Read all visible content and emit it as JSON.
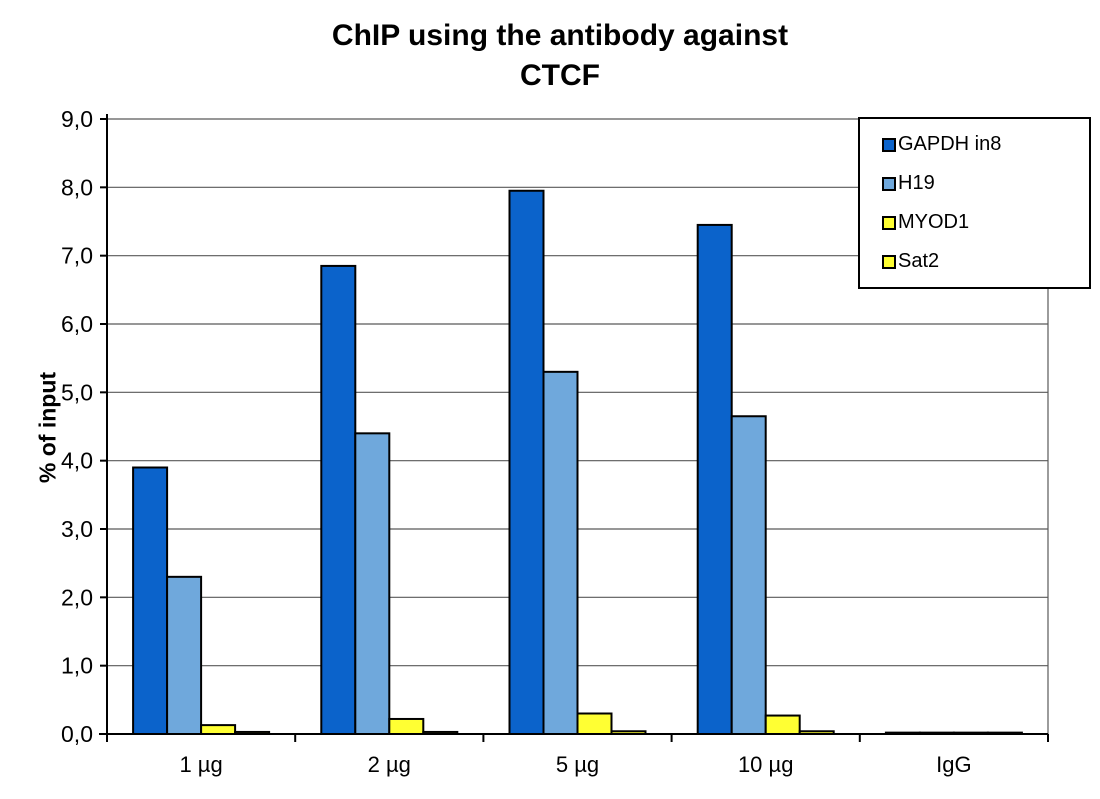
{
  "title": {
    "line1": "ChIP using the antibody against",
    "line2": "CTCF"
  },
  "chart_data": {
    "type": "bar",
    "title": "ChIP using the antibody against CTCF",
    "categories": [
      "1 µg",
      "2 µg",
      "5 µg",
      "10 µg",
      "IgG"
    ],
    "series": [
      {
        "name": "GAPDH in8",
        "color": "#0B63CB",
        "values": [
          3.9,
          6.85,
          7.95,
          7.45,
          0.02
        ]
      },
      {
        "name": "H19",
        "color": "#6FA8DC",
        "values": [
          2.3,
          4.4,
          5.3,
          4.65,
          0.02
        ]
      },
      {
        "name": "MYOD1",
        "color": "#FFFF33",
        "values": [
          0.13,
          0.22,
          0.3,
          0.27,
          0.02
        ]
      },
      {
        "name": "Sat2",
        "color": "#FFFF33",
        "values": [
          0.03,
          0.03,
          0.04,
          0.04,
          0.02
        ]
      }
    ],
    "xlabel": "",
    "ylabel": "% of input",
    "ylim": [
      0,
      9
    ],
    "ytick_step": 1,
    "ytick_labels": [
      "0,0",
      "1,0",
      "2,0",
      "3,0",
      "4,0",
      "5,0",
      "6,0",
      "7,0",
      "8,0",
      "9,0"
    ],
    "grid": true,
    "legend_position": "top-right",
    "bar_border_color": "#000000",
    "gridline_color": "#595959",
    "axis_color": "#000000"
  }
}
